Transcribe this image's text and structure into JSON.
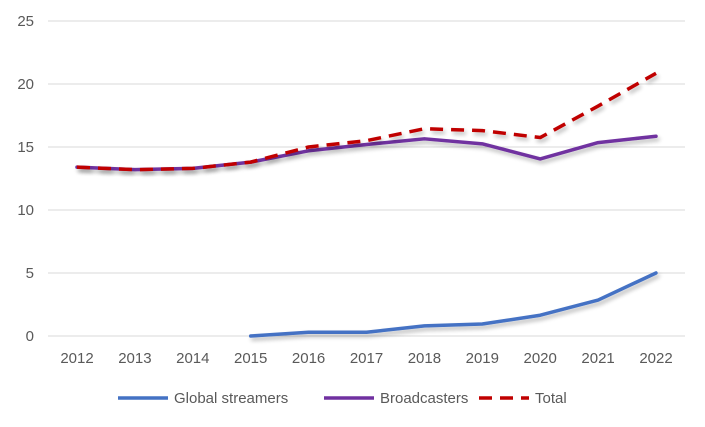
{
  "chart_data": {
    "type": "line",
    "title": "",
    "xlabel": "",
    "ylabel": "",
    "categories": [
      "2012",
      "2013",
      "2014",
      "2015",
      "2016",
      "2017",
      "2018",
      "2019",
      "2020",
      "2021",
      "2022"
    ],
    "ylim": [
      0,
      25
    ],
    "yticks": [
      "0",
      "5",
      "10",
      "15",
      "20",
      "25"
    ],
    "grid": true,
    "legend_position": "bottom",
    "series": [
      {
        "name": "Global streamers",
        "color": "#4472C4",
        "style": "solid",
        "values": [
          null,
          null,
          null,
          0.0,
          0.3,
          0.3,
          0.8,
          0.95,
          1.65,
          2.85,
          5.0
        ]
      },
      {
        "name": "Broadcasters",
        "color": "#7030A0",
        "style": "solid",
        "values": [
          13.4,
          13.2,
          13.3,
          13.8,
          14.7,
          15.2,
          15.65,
          15.25,
          14.05,
          15.35,
          15.85
        ]
      },
      {
        "name": "Total",
        "color": "#C00000",
        "style": "dashed",
        "values": [
          13.4,
          13.2,
          13.3,
          13.8,
          15.0,
          15.5,
          16.45,
          16.3,
          15.75,
          18.25,
          20.85
        ]
      }
    ]
  }
}
